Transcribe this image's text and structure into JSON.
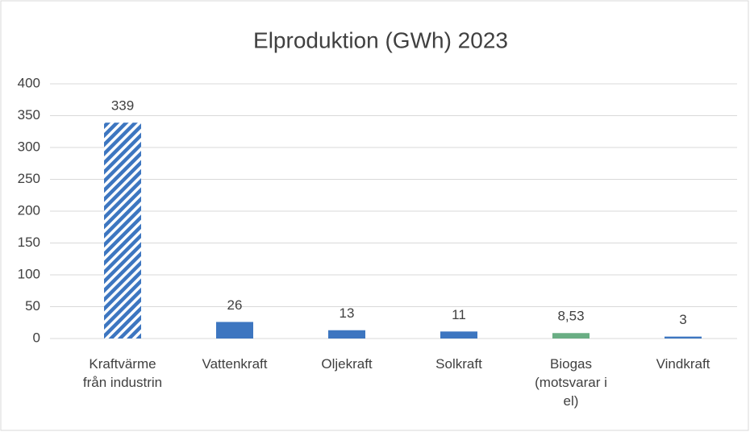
{
  "chart_data": {
    "type": "bar",
    "title": "Elproduktion (GWh) 2023",
    "categories": [
      "Kraftvärme från industrin",
      "Vattenkraft",
      "Oljekraft",
      "Solkraft",
      "Biogas (motsvarar i el)",
      "Vindkraft"
    ],
    "values": [
      339,
      26,
      13,
      11,
      8.53,
      3
    ],
    "value_labels": [
      "339",
      "26",
      "13",
      "11",
      "8,53",
      "3"
    ],
    "colors": [
      "#3d76c0",
      "#3d76c0",
      "#3d76c0",
      "#3d76c0",
      "#6aae84",
      "#3d76c0"
    ],
    "hatched": [
      true,
      false,
      false,
      false,
      false,
      false
    ],
    "ylim": [
      0,
      400
    ],
    "yticks": [
      0,
      50,
      100,
      150,
      200,
      250,
      300,
      350,
      400
    ],
    "grid": true
  }
}
